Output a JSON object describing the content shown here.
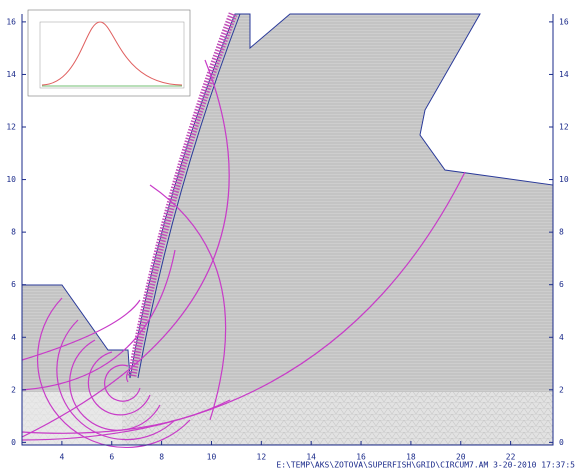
{
  "chart_data": {
    "type": "field",
    "xlim": [
      2.4,
      23.7
    ],
    "ylim": [
      -0.1,
      16.3
    ],
    "xticks": [
      4,
      6,
      8,
      10,
      12,
      14,
      16,
      18,
      20,
      22
    ],
    "yticks": [
      0,
      2,
      4,
      6,
      8,
      10,
      12,
      14,
      16
    ],
    "footer": "E:\\TEMP\\AKS\\ZOTOVA\\SUPERFISH\\GRID\\CIRCUM7.AM  3-20-2010  17:37:5"
  }
}
